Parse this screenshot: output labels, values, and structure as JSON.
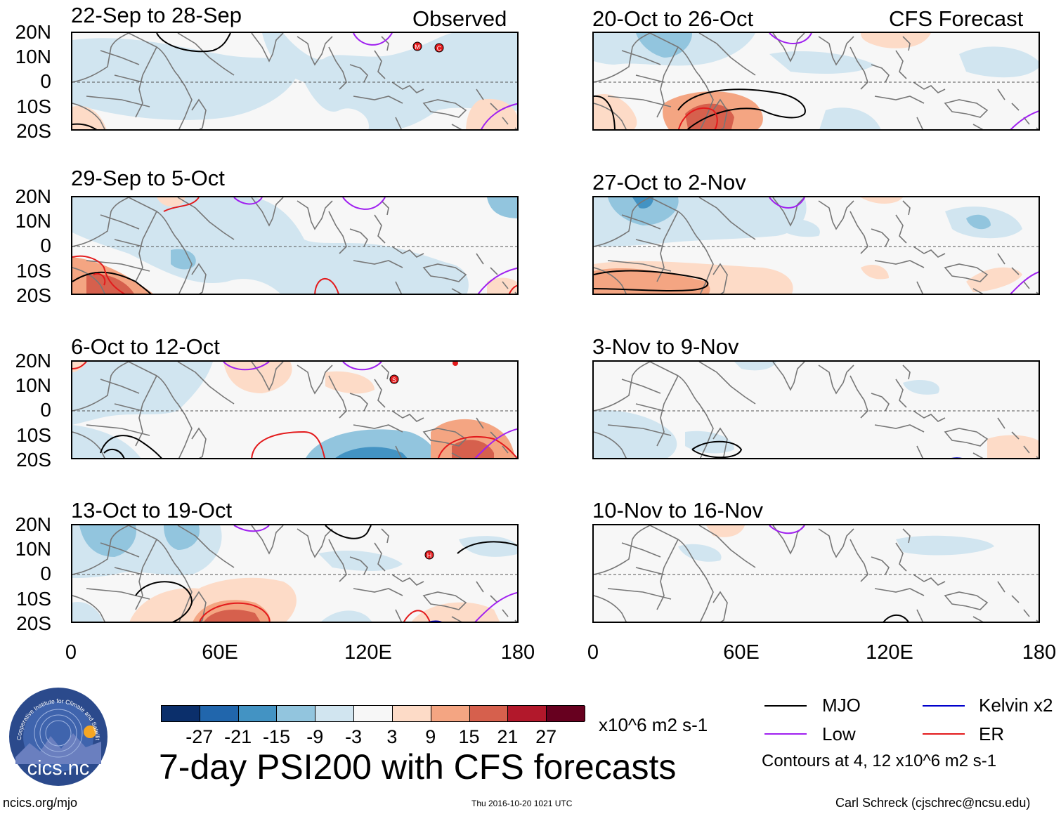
{
  "left_column": {
    "label": "Observed",
    "panels": [
      {
        "title": "22-Sep to 28-Sep"
      },
      {
        "title": "29-Sep to 5-Oct"
      },
      {
        "title": "6-Oct to 12-Oct"
      },
      {
        "title": "13-Oct to 19-Oct"
      }
    ]
  },
  "right_column": {
    "label": "CFS Forecast",
    "panels": [
      {
        "title": "20-Oct to 26-Oct"
      },
      {
        "title": "27-Oct to 2-Nov"
      },
      {
        "title": "3-Nov to 9-Nov"
      },
      {
        "title": "10-Nov to 16-Nov"
      }
    ]
  },
  "lat_labels": [
    "20N",
    "10N",
    "0",
    "10S",
    "20S"
  ],
  "lon_labels": [
    "0",
    "60E",
    "120E",
    "180"
  ],
  "storm_markers": {
    "p1": [
      "M",
      "C"
    ],
    "p3": [
      "S"
    ],
    "p4": [
      "H"
    ]
  },
  "colorbar": {
    "colors": [
      "#0b2f6b",
      "#2166ac",
      "#4393c3",
      "#92c5de",
      "#d1e5f0",
      "#f7f7f7",
      "#fddbc7",
      "#f4a582",
      "#d6604d",
      "#b2182b",
      "#67001f"
    ],
    "ticks": [
      "-27",
      "-21",
      "-15",
      "-9",
      "-3",
      "3",
      "9",
      "15",
      "21",
      "27"
    ],
    "unit": "x10^6 m2 s-1"
  },
  "main_title": "7-day PSI200 with CFS forecasts",
  "legend": [
    {
      "label": "MJO",
      "color": "#000000"
    },
    {
      "label": "Kelvin x2",
      "color": "#0000cc"
    },
    {
      "label": "Low",
      "color": "#a020f0"
    },
    {
      "label": "ER",
      "color": "#e31a1c"
    }
  ],
  "contour_note": "Contours at 4, 12 x10^6 m2 s-1",
  "logo": {
    "text": "cics.nc",
    "arc_text": "Cooperative Institute for Climate and Satellites"
  },
  "footer": {
    "left": "ncics.org/mjo",
    "center": "Thu 2016-10-20 1021 UTC",
    "right": "Carl Schreck (cjschrec@ncsu.edu)"
  }
}
